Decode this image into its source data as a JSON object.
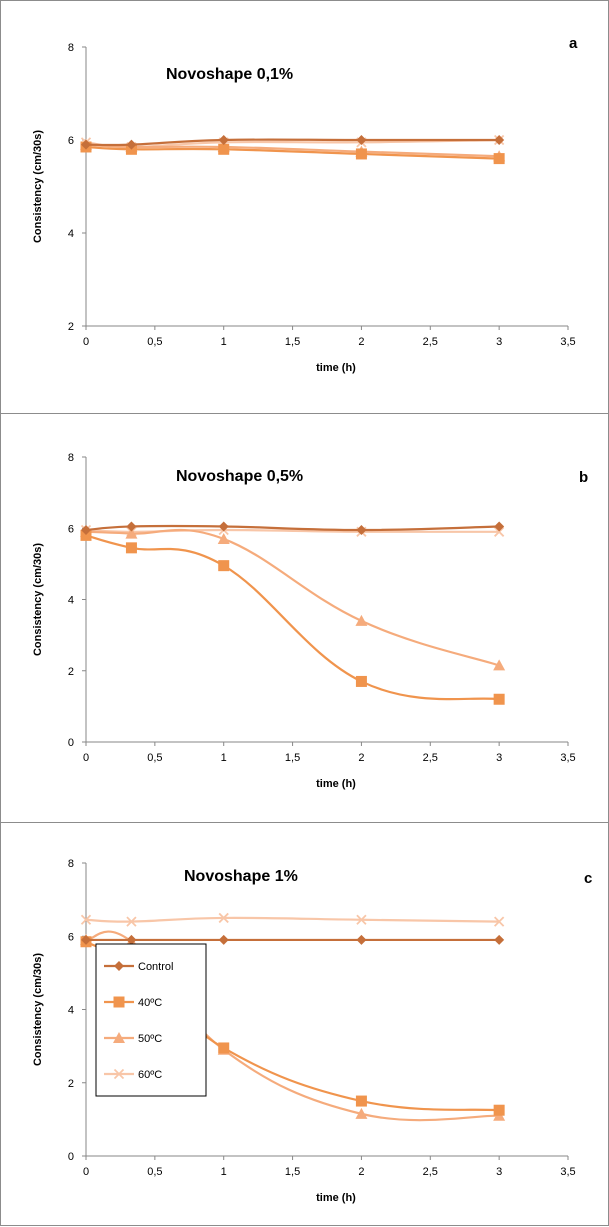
{
  "colors": {
    "Control": "#c56f3a",
    "40ºC": "#f0944d",
    "50ºC": "#f5ab7c",
    "60ºC": "#f8c6a8"
  },
  "chart_data": [
    {
      "type": "line",
      "title": "Novoshape 0,1%",
      "panel_label": "a",
      "xlabel": "time (h)",
      "ylabel": "Consistency (cm/30s)",
      "xlim": [
        0,
        3.5
      ],
      "ylim": [
        2,
        8
      ],
      "xticks": [
        "0",
        "0,5",
        "1",
        "1,5",
        "2",
        "2,5",
        "3",
        "3,5"
      ],
      "yticks": [
        "2",
        "4",
        "6",
        "8"
      ],
      "x": [
        0,
        0.33,
        1,
        2,
        3
      ],
      "series": [
        {
          "name": "Control",
          "marker": "diamond",
          "values": [
            5.9,
            5.9,
            6.0,
            6.0,
            6.0
          ]
        },
        {
          "name": "40ºC",
          "marker": "square",
          "values": [
            5.85,
            5.8,
            5.8,
            5.7,
            5.6
          ]
        },
        {
          "name": "50ºC",
          "marker": "triangle",
          "values": [
            5.9,
            5.85,
            5.85,
            5.75,
            5.65
          ]
        },
        {
          "name": "60ºC",
          "marker": "cross",
          "values": [
            5.95,
            5.85,
            5.95,
            5.95,
            6.0
          ]
        }
      ]
    },
    {
      "type": "line",
      "title": "Novoshape 0,5%",
      "panel_label": "b",
      "xlabel": "time (h)",
      "ylabel": "Consistency (cm/30s)",
      "xlim": [
        0,
        3.5
      ],
      "ylim": [
        0,
        8
      ],
      "xticks": [
        "0",
        "0,5",
        "1",
        "1,5",
        "2",
        "2,5",
        "3",
        "3,5"
      ],
      "yticks": [
        "0",
        "2",
        "4",
        "6",
        "8"
      ],
      "x": [
        0,
        0.33,
        1,
        2,
        3
      ],
      "series": [
        {
          "name": "Control",
          "marker": "diamond",
          "values": [
            5.95,
            6.05,
            6.05,
            5.95,
            6.05
          ]
        },
        {
          "name": "40ºC",
          "marker": "square",
          "values": [
            5.8,
            5.45,
            4.95,
            1.7,
            1.2
          ]
        },
        {
          "name": "50ºC",
          "marker": "triangle",
          "values": [
            5.9,
            5.85,
            5.7,
            3.4,
            2.15
          ]
        },
        {
          "name": "60ºC",
          "marker": "cross",
          "values": [
            5.95,
            5.9,
            5.95,
            5.9,
            5.9
          ]
        }
      ]
    },
    {
      "type": "line",
      "title": "Novoshape 1%",
      "panel_label": "c",
      "xlabel": "time (h)",
      "ylabel": "Consistency (cm/30s)",
      "xlim": [
        0,
        3.5
      ],
      "ylim": [
        0,
        8
      ],
      "xticks": [
        "0",
        "0,5",
        "1",
        "1,5",
        "2",
        "2,5",
        "3",
        "3,5"
      ],
      "yticks": [
        "0",
        "2",
        "4",
        "6",
        "8"
      ],
      "x": [
        0,
        0.33,
        1,
        2,
        3
      ],
      "legend": {
        "position": "bottom-left",
        "entries": [
          "Control",
          "40ºC",
          "50ºC",
          "60ºC"
        ]
      },
      "series": [
        {
          "name": "Control",
          "marker": "diamond",
          "values": [
            5.9,
            5.9,
            5.9,
            5.9,
            5.9
          ]
        },
        {
          "name": "40ºC",
          "marker": "square",
          "values": [
            5.85,
            5.15,
            2.95,
            1.5,
            1.25
          ]
        },
        {
          "name": "50ºC",
          "marker": "triangle",
          "values": [
            5.9,
            5.85,
            2.9,
            1.15,
            1.1
          ]
        },
        {
          "name": "60ºC",
          "marker": "cross",
          "values": [
            6.45,
            6.4,
            6.5,
            6.45,
            6.4
          ]
        }
      ]
    }
  ]
}
